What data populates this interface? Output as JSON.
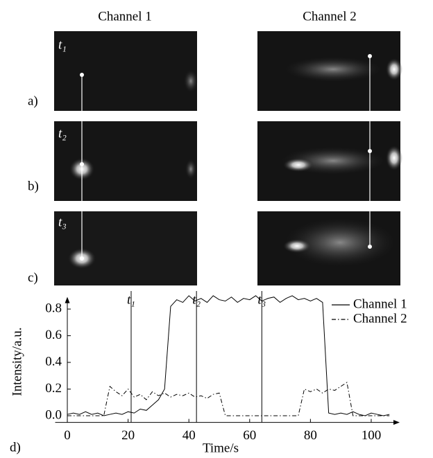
{
  "figure": {
    "column_titles": [
      "Channel 1",
      "Channel 2"
    ],
    "panel_labels": [
      "a)",
      "b)",
      "c)",
      "d)"
    ],
    "time_labels": [
      "t₁",
      "t₂",
      "t₃"
    ]
  },
  "chart_data": {
    "type": "line",
    "x_label": "Time/s",
    "y_label": "Intensity/a.u.",
    "x": [
      0,
      2,
      4,
      6,
      8,
      10,
      12,
      14,
      16,
      18,
      20,
      22,
      24,
      26,
      28,
      30,
      32,
      34,
      36,
      38,
      40,
      42,
      44,
      46,
      48,
      50,
      52,
      54,
      56,
      58,
      60,
      62,
      64,
      66,
      68,
      70,
      72,
      74,
      76,
      78,
      80,
      82,
      84,
      86,
      88,
      90,
      92,
      94,
      96,
      98,
      100,
      102,
      104,
      106
    ],
    "series": [
      {
        "name": "Channel 1",
        "color": "#000000",
        "dash": "solid",
        "values": [
          0.01,
          0.02,
          0.01,
          0.03,
          0.01,
          0.02,
          0.0,
          0.01,
          0.02,
          0.01,
          0.03,
          0.02,
          0.05,
          0.04,
          0.08,
          0.12,
          0.2,
          0.82,
          0.87,
          0.85,
          0.9,
          0.86,
          0.88,
          0.85,
          0.9,
          0.87,
          0.86,
          0.89,
          0.85,
          0.88,
          0.87,
          0.9,
          0.86,
          0.88,
          0.89,
          0.85,
          0.88,
          0.9,
          0.87,
          0.88,
          0.86,
          0.88,
          0.85,
          0.02,
          0.01,
          0.02,
          0.01,
          0.03,
          0.01,
          0.0,
          0.02,
          0.01,
          0.0,
          0.01
        ]
      },
      {
        "name": "Channel 2",
        "color": "#000000",
        "dash": "dashdot",
        "values": [
          0.0,
          0.0,
          0.0,
          0.0,
          0.0,
          0.0,
          0.0,
          0.22,
          0.18,
          0.15,
          0.2,
          0.14,
          0.16,
          0.12,
          0.18,
          0.15,
          0.17,
          0.14,
          0.16,
          0.15,
          0.17,
          0.14,
          0.15,
          0.13,
          0.16,
          0.17,
          0.0,
          0.0,
          0.0,
          0.0,
          0.0,
          0.0,
          0.0,
          0.0,
          0.0,
          0.0,
          0.0,
          0.0,
          0.0,
          0.2,
          0.18,
          0.2,
          0.17,
          0.2,
          0.19,
          0.22,
          0.25,
          0.0,
          0.0,
          0.0,
          0.0,
          0.0,
          0.0,
          0.0
        ]
      }
    ],
    "markers": [
      {
        "x": 21,
        "label": "t₁"
      },
      {
        "x": 42.5,
        "label": "t₂"
      },
      {
        "x": 64,
        "label": "t₃"
      }
    ],
    "xlim": [
      -4,
      108
    ],
    "ylim": [
      -0.05,
      0.86
    ],
    "xticks": [
      0,
      20,
      40,
      60,
      80,
      100
    ],
    "yticks": [
      {
        "value": 0,
        "label": "0.0"
      },
      {
        "value": 0.2,
        "label": "0.2"
      },
      {
        "value": 0.4,
        "label": "0.4"
      },
      {
        "value": 0.6,
        "label": "0.6"
      },
      {
        "value": 0.8,
        "label": "0.8"
      }
    ],
    "legend": "upper right",
    "grid": false
  }
}
